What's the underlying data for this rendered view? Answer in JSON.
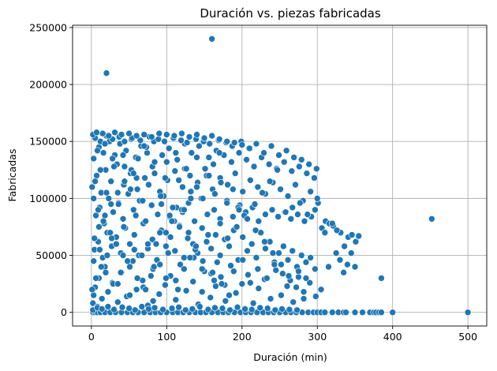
{
  "chart_data": {
    "type": "scatter",
    "title": "Duración vs. piezas fabricadas",
    "xlabel": "Duración (min)",
    "ylabel": "Fabricadas",
    "xlim": [
      -25,
      525
    ],
    "ylim": [
      -12000,
      252000
    ],
    "xticks": [
      0,
      100,
      200,
      300,
      400,
      500
    ],
    "yticks": [
      0,
      50000,
      100000,
      150000,
      200000,
      250000
    ],
    "xtick_labels": [
      "0",
      "100",
      "200",
      "300",
      "400",
      "500"
    ],
    "ytick_labels": [
      "0",
      "50000",
      "100000",
      "150000",
      "200000",
      "250000"
    ],
    "grid": true,
    "marker_color": "#1f77b4",
    "marker_edge_color": "#ffffff",
    "series": [
      {
        "x": [
          2,
          5,
          8,
          12,
          18,
          25,
          32,
          40,
          48,
          55,
          62,
          70,
          78,
          85,
          92,
          100,
          108,
          115,
          122,
          130,
          138,
          145,
          152,
          160,
          168,
          175,
          182,
          190,
          198,
          205,
          212,
          220,
          228,
          235,
          242,
          250,
          258,
          265,
          272,
          280,
          288,
          295,
          300,
          305,
          310,
          320,
          328,
          335,
          338,
          350,
          360,
          370,
          375,
          378,
          382,
          385,
          400,
          500,
          2,
          3,
          5,
          8,
          10,
          14,
          18,
          22,
          28,
          35,
          40,
          47,
          55,
          60,
          68,
          75,
          82,
          90,
          98,
          105,
          112,
          118,
          126,
          135,
          142,
          150,
          158,
          165,
          172,
          178,
          185,
          192,
          200,
          208,
          215,
          222,
          230,
          238,
          245,
          252,
          260,
          268,
          275,
          282,
          290,
          298,
          4,
          9,
          15,
          21,
          27,
          33,
          39,
          45,
          51,
          57,
          63,
          69,
          75,
          81,
          87,
          93,
          99,
          105,
          111,
          117,
          123,
          129,
          135,
          141,
          147,
          153,
          159,
          165,
          171,
          177,
          183,
          189,
          195,
          201,
          207,
          213,
          219,
          225,
          231,
          237,
          243,
          249,
          255,
          261,
          267,
          273,
          279,
          285,
          291,
          297,
          6,
          11,
          17,
          23,
          29,
          36,
          42,
          49,
          56,
          64,
          72,
          80,
          88,
          96,
          104,
          113,
          121,
          129,
          137,
          146,
          154,
          163,
          171,
          180,
          188,
          197,
          205,
          214,
          222,
          231,
          240,
          248,
          257,
          265,
          274,
          283,
          292,
          1,
          7,
          13,
          19,
          26,
          34,
          43,
          52,
          61,
          71,
          81,
          91,
          101,
          111,
          121,
          131,
          141,
          151,
          161,
          171,
          181,
          191,
          201,
          211,
          221,
          231,
          241,
          251,
          261,
          271,
          281,
          291,
          301,
          311,
          321,
          331,
          341,
          351,
          3,
          10,
          16,
          24,
          31,
          38,
          46,
          53,
          59,
          66,
          74,
          83,
          94,
          103,
          114,
          124,
          133,
          143,
          156,
          166,
          176,
          186,
          196,
          206,
          216,
          226,
          236,
          246,
          256,
          266,
          276,
          286,
          296,
          306,
          316,
          326,
          336,
          346,
          5,
          12,
          20,
          28,
          37,
          44,
          54,
          65,
          77,
          89,
          97,
          109,
          119,
          127,
          139,
          149,
          157,
          169,
          179,
          187,
          199,
          209,
          219,
          229,
          239,
          249,
          259,
          269,
          279,
          289,
          299,
          2,
          8,
          14,
          22,
          30,
          41,
          50,
          58,
          67,
          76,
          84,
          95,
          107,
          116,
          125,
          134,
          144,
          155,
          164,
          174,
          184,
          194,
          204,
          213,
          224,
          234,
          244,
          253,
          263,
          273,
          4,
          10,
          18,
          26,
          35,
          44,
          53,
          62,
          73,
          86,
          99,
          110,
          120,
          132,
          140,
          153,
          162,
          170,
          181,
          193,
          203,
          217,
          227,
          237,
          247,
          258,
          267,
          277,
          287,
          297,
          1,
          6,
          13,
          21,
          29,
          39,
          48,
          57,
          69,
          79,
          91,
          102,
          112,
          123,
          136,
          147,
          159,
          167,
          177,
          189,
          201,
          211,
          221,
          233,
          243,
          254,
          264,
          275,
          285,
          3,
          9,
          16,
          25,
          33,
          42,
          51,
          61,
          72,
          82,
          93,
          104,
          117,
          128,
          138,
          148,
          161,
          173,
          183,
          195,
          207,
          218,
          230,
          241,
          252,
          262,
          272,
          282,
          2,
          7,
          15,
          23,
          31,
          40,
          50,
          60,
          70,
          80,
          90,
          100,
          110,
          120,
          130,
          140,
          150,
          160,
          170,
          180,
          190,
          200,
          210,
          5,
          12,
          20,
          28,
          36,
          44,
          52,
          60,
          68,
          76,
          84,
          92,
          100,
          108,
          116,
          124,
          132,
          140,
          148,
          156,
          164,
          172,
          180,
          188,
          196,
          3,
          11,
          19,
          27,
          35,
          43,
          51,
          59,
          67,
          75,
          83,
          91,
          99,
          107,
          115,
          123,
          131,
          139,
          147,
          155,
          163,
          171,
          8,
          18,
          30,
          42,
          56,
          70,
          84,
          98,
          112,
          126,
          140,
          20,
          160,
          452,
          385,
          355,
          350,
          345,
          340,
          335,
          330,
          325,
          320,
          315,
          310,
          305,
          300
        ],
        "y": [
          0,
          0,
          0,
          0,
          0,
          0,
          0,
          0,
          0,
          0,
          0,
          0,
          0,
          0,
          0,
          0,
          0,
          0,
          0,
          0,
          0,
          0,
          0,
          0,
          0,
          0,
          0,
          0,
          0,
          0,
          0,
          0,
          0,
          0,
          0,
          0,
          0,
          0,
          0,
          0,
          0,
          0,
          0,
          0,
          0,
          0,
          0,
          0,
          0,
          0,
          0,
          0,
          0,
          0,
          0,
          0,
          0,
          0,
          8000,
          15000,
          22000,
          5000,
          30000,
          12000,
          40000,
          18000,
          26000,
          9000,
          35000,
          14000,
          45000,
          20000,
          28000,
          6000,
          38000,
          16000,
          24000,
          32000,
          11000,
          42000,
          19000,
          27000,
          7000,
          36000,
          13000,
          23000,
          31000,
          10000,
          41000,
          17000,
          25000,
          33000,
          8000,
          21000,
          29000,
          12000,
          37000,
          15000,
          23000,
          9000,
          31000,
          18000,
          26000,
          14000,
          55000,
          62000,
          48000,
          70000,
          58000,
          66000,
          52000,
          74000,
          60000,
          68000,
          50000,
          78000,
          56000,
          64000,
          46000,
          72000,
          58000,
          66000,
          54000,
          76000,
          48000,
          70000,
          60000,
          52000,
          74000,
          62000,
          56000,
          68000,
          50000,
          64000,
          58000,
          72000,
          46000,
          66000,
          54000,
          60000,
          48000,
          70000,
          56000,
          62000,
          44000,
          52000,
          58000,
          46000,
          54000,
          40000,
          50000,
          44000,
          48000,
          38000,
          85000,
          92000,
          78000,
          100000,
          88000,
          96000,
          82000,
          104000,
          90000,
          98000,
          80000,
          94000,
          86000,
          102000,
          84000,
          92000,
          88000,
          96000,
          80000,
          100000,
          86000,
          90000,
          82000,
          98000,
          84000,
          94000,
          88000,
          92000,
          80000,
          86000,
          90000,
          84000,
          88000,
          82000,
          86000,
          80000,
          84000,
          110000,
          120000,
          105000,
          125000,
          115000,
          130000,
          112000,
          122000,
          108000,
          118000,
          128000,
          106000,
          116000,
          124000,
          110000,
          120000,
          114000,
          126000,
          108000,
          118000,
          112000,
          122000,
          106000,
          116000,
          110000,
          104000,
          114000,
          108000,
          102000,
          112000,
          98000,
          106000,
          96000,
          80000,
          76000,
          70000,
          66000,
          62000,
          135000,
          145000,
          140000,
          150000,
          138000,
          148000,
          142000,
          152000,
          136000,
          146000,
          140000,
          150000,
          138000,
          144000,
          134000,
          148000,
          140000,
          146000,
          136000,
          142000,
          138000,
          132000,
          140000,
          134000,
          128000,
          136000,
          130000,
          126000,
          132000,
          124000,
          128000,
          122000,
          118000,
          74000,
          78000,
          72000,
          58000,
          68000,
          153000,
          150000,
          155000,
          152000,
          154000,
          150000,
          153000,
          151000,
          154000,
          152000,
          150000,
          153000,
          151000,
          149000,
          152000,
          150000,
          148000,
          151000,
          149000,
          146000,
          150000,
          144000,
          148000,
          140000,
          146000,
          138000,
          142000,
          136000,
          134000,
          130000,
          126000,
          2000,
          4000,
          3000,
          5000,
          2500,
          4500,
          3500,
          2000,
          5000,
          3000,
          4000,
          2500,
          3500,
          4500,
          2000,
          3000,
          5000,
          2500,
          4000,
          3500,
          2000,
          4500,
          3000,
          2500,
          4000,
          3500,
          2000,
          3000,
          2500,
          2000,
          65000,
          75000,
          85000,
          95000,
          105000,
          115000,
          125000,
          135000,
          145000,
          60000,
          70000,
          80000,
          90000,
          100000,
          110000,
          120000,
          130000,
          140000,
          65000,
          75000,
          85000,
          95000,
          105000,
          115000,
          125000,
          88000,
          92000,
          96000,
          86000,
          90000,
          20000,
          30000,
          40000,
          50000,
          25000,
          35000,
          45000,
          55000,
          22000,
          32000,
          42000,
          52000,
          28000,
          38000,
          48000,
          18000,
          34000,
          44000,
          24000,
          36000,
          46000,
          26000,
          38000,
          30000,
          42000,
          34000,
          28000,
          36000,
          30000,
          100000,
          90000,
          80000,
          70000,
          60000,
          50000,
          40000,
          30000,
          20000,
          10000,
          95000,
          85000,
          75000,
          65000,
          55000,
          45000,
          35000,
          25000,
          15000,
          92000,
          82000,
          72000,
          62000,
          52000,
          42000,
          32000,
          22000,
          12000,
          156000,
          158000,
          157000,
          155000,
          158000,
          156000,
          157000,
          155000,
          156000,
          154000,
          157000,
          156000,
          155000,
          157000,
          154000,
          156000,
          153000,
          155000,
          152000,
          150000,
          149000,
          147000,
          144000,
          115000,
          125000,
          105000,
          135000,
          95000,
          128000,
          108000,
          118000,
          98000,
          112000,
          122000,
          102000,
          132000,
          92000,
          116000,
          126000,
          106000,
          110000,
          100000,
          120000,
          104000,
          114000,
          96000,
          108000,
          90000,
          45000,
          55000,
          35000,
          65000,
          25000,
          75000,
          15000,
          85000,
          50000,
          60000,
          40000,
          70000,
          30000,
          80000,
          20000,
          90000,
          48000,
          58000,
          38000,
          68000,
          28000,
          78000,
          142000,
          148000,
          128000,
          138000,
          122000,
          146000,
          132000,
          118000,
          140000,
          126000,
          136000,
          210000,
          240000,
          82000,
          30000,
          67000,
          40000,
          52000,
          42000,
          35000,
          46000,
          52000,
          78000,
          40000,
          70000,
          20000,
          100000
        ]
      }
    ]
  }
}
